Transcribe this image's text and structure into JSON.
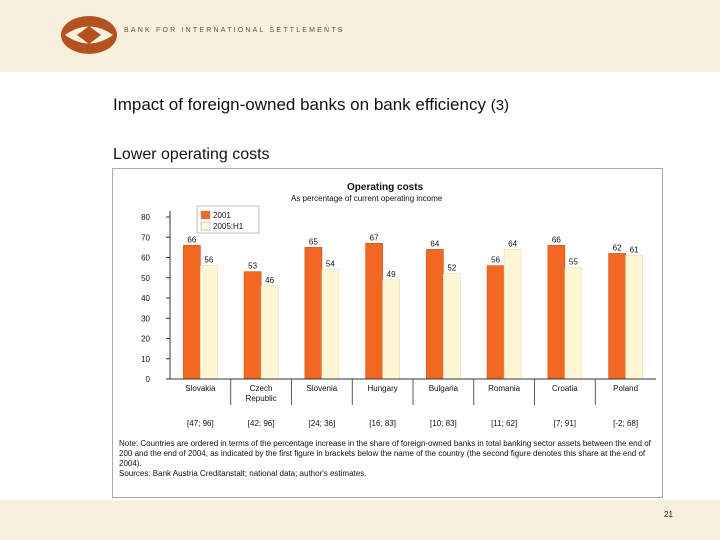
{
  "header": {
    "bank_name": "BANK FOR INTERNATIONAL SETTLEMENTS"
  },
  "slide": {
    "title": "Impact of foreign-owned banks on bank efficiency",
    "title_number": "(3)",
    "subtitle": "Lower operating costs",
    "page_number": "21"
  },
  "colors": {
    "header_band": "#f7f0dc",
    "logo": "#b5501f",
    "series_2001": "#f26722",
    "series_2005": "#fff7d6"
  },
  "chart_data": {
    "type": "bar",
    "title": "Operating costs",
    "subtitle": "As percentage of current operating income",
    "categories": [
      "Slovakia",
      "Czech Republic",
      "Slovenia",
      "Hungary",
      "Bulgaria",
      "Romania",
      "Croatia",
      "Poland"
    ],
    "category_notes": [
      "[47; 96]",
      "[42; 96]",
      "[24; 36]",
      "[16; 83]",
      "[10; 83]",
      "[11; 62]",
      "[7; 91]",
      "[-2; 68]"
    ],
    "series": [
      {
        "name": "2001",
        "values": [
          66,
          53,
          65,
          67,
          64,
          56,
          66,
          62
        ]
      },
      {
        "name": "2005:H1",
        "values": [
          56,
          46,
          54,
          49,
          52,
          64,
          55,
          61
        ]
      }
    ],
    "ylim": [
      0,
      80
    ],
    "yticks": [
      0,
      10,
      20,
      30,
      40,
      50,
      60,
      70,
      80
    ],
    "legend_position": "top-left",
    "grid": false,
    "note": "Note: Countries are ordered in terms of the percentage increase in the share of foreign-owned banks in total banking sector assets between the end of 200 and the end of 2004, as indicated by the first figure in brackets below the name of the country (the second figure denotes this share at the end of 2004).",
    "sources": "Sources: Bank Austria Creditanstalt; national data; author's estimates."
  }
}
